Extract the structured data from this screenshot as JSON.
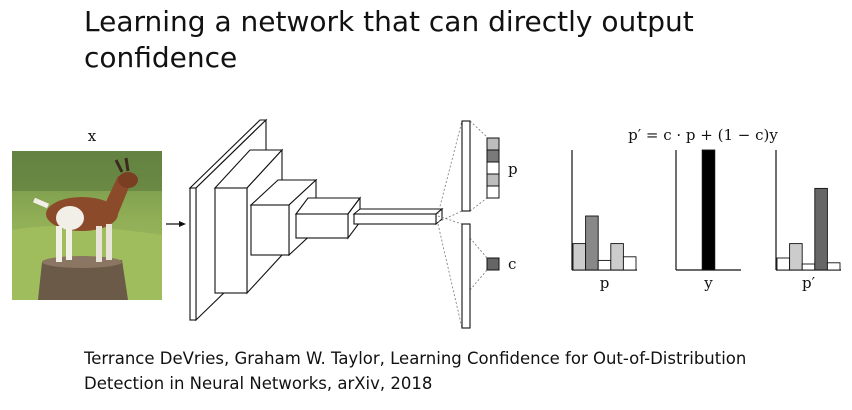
{
  "slide": {
    "title": "Learning a network that can directly output confidence",
    "citation": "Terrance DeVries, Graham W. Taylor, Learning Confidence for Out-of-Distribution Detection in Neural Networks, arXiv, 2018"
  },
  "diagram": {
    "input_label": "x",
    "prediction_label": "p",
    "confidence_label": "c",
    "formula": "p′ = c · p + (1 − c)y",
    "image_subject": "goat-photo"
  },
  "chart_data": [
    {
      "type": "bar",
      "xlabel": "p",
      "values": [
        0.22,
        0.45,
        0.08,
        0.22,
        0.11
      ],
      "colors": [
        "#cccccc",
        "#888888",
        "#ffffff",
        "#cccccc",
        "#ffffff"
      ]
    },
    {
      "type": "bar",
      "xlabel": "y",
      "values": [
        0,
        0,
        1.0,
        0,
        0
      ],
      "colors": [
        "#ffffff",
        "#ffffff",
        "#000000",
        "#ffffff",
        "#ffffff"
      ]
    },
    {
      "type": "bar",
      "xlabel": "p′",
      "values": [
        0.1,
        0.22,
        0.05,
        0.68,
        0.06
      ],
      "colors": [
        "#ffffff",
        "#cccccc",
        "#ffffff",
        "#666666",
        "#ffffff"
      ]
    }
  ]
}
